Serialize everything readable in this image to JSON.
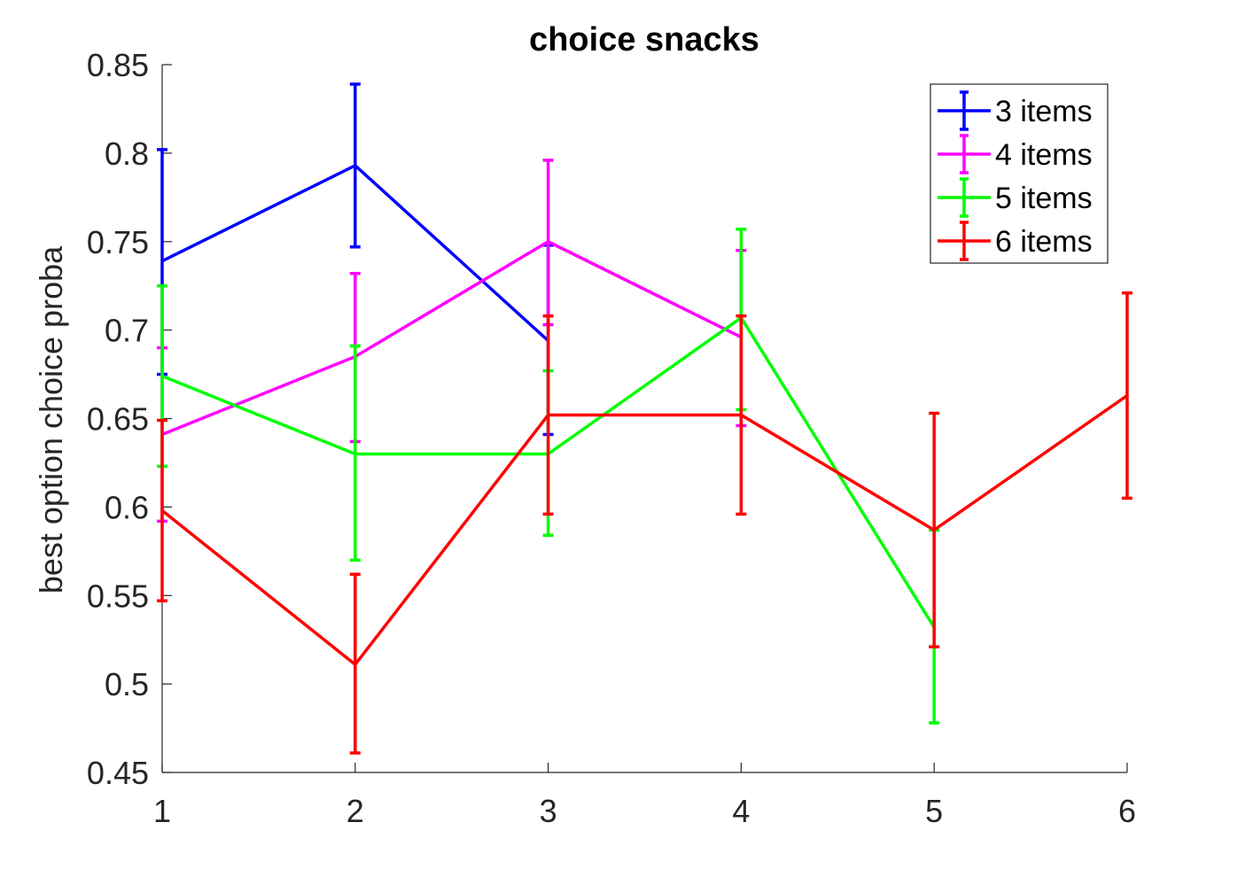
{
  "chart_data": {
    "type": "line",
    "title": "choice snacks",
    "xlabel": "",
    "ylabel": "best option choice proba",
    "xlim": [
      1,
      6
    ],
    "ylim": [
      0.45,
      0.85
    ],
    "xticks": [
      "1",
      "2",
      "3",
      "4",
      "5",
      "6"
    ],
    "yticks": [
      "0.45",
      "0.5",
      "0.55",
      "0.6",
      "0.65",
      "0.7",
      "0.75",
      "0.8",
      "0.85"
    ],
    "grid": false,
    "legend_position": "top-right",
    "error_bars": true,
    "series": [
      {
        "name": "3 items",
        "color": "#0000ff",
        "points": [
          {
            "x": 1,
            "y": 0.739,
            "lo": 0.675,
            "hi": 0.802
          },
          {
            "x": 2,
            "y": 0.793,
            "lo": 0.747,
            "hi": 0.839
          },
          {
            "x": 3,
            "y": 0.694,
            "lo": 0.641,
            "hi": 0.748
          }
        ]
      },
      {
        "name": "4 items",
        "color": "#ff00ff",
        "points": [
          {
            "x": 1,
            "y": 0.641,
            "lo": 0.592,
            "hi": 0.69
          },
          {
            "x": 2,
            "y": 0.685,
            "lo": 0.637,
            "hi": 0.732
          },
          {
            "x": 3,
            "y": 0.75,
            "lo": 0.703,
            "hi": 0.796
          },
          {
            "x": 4,
            "y": 0.696,
            "lo": 0.646,
            "hi": 0.745
          }
        ]
      },
      {
        "name": "5 items",
        "color": "#00ff00",
        "points": [
          {
            "x": 1,
            "y": 0.674,
            "lo": 0.623,
            "hi": 0.725
          },
          {
            "x": 2,
            "y": 0.63,
            "lo": 0.57,
            "hi": 0.691
          },
          {
            "x": 3,
            "y": 0.63,
            "lo": 0.584,
            "hi": 0.677
          },
          {
            "x": 4,
            "y": 0.707,
            "lo": 0.655,
            "hi": 0.757
          },
          {
            "x": 5,
            "y": 0.532,
            "lo": 0.478,
            "hi": 0.587
          }
        ]
      },
      {
        "name": "6 items",
        "color": "#ff0000",
        "points": [
          {
            "x": 1,
            "y": 0.598,
            "lo": 0.547,
            "hi": 0.649
          },
          {
            "x": 2,
            "y": 0.511,
            "lo": 0.461,
            "hi": 0.562
          },
          {
            "x": 3,
            "y": 0.652,
            "lo": 0.596,
            "hi": 0.708
          },
          {
            "x": 4,
            "y": 0.652,
            "lo": 0.596,
            "hi": 0.708
          },
          {
            "x": 5,
            "y": 0.587,
            "lo": 0.521,
            "hi": 0.653
          },
          {
            "x": 6,
            "y": 0.663,
            "lo": 0.605,
            "hi": 0.721
          }
        ]
      }
    ]
  }
}
